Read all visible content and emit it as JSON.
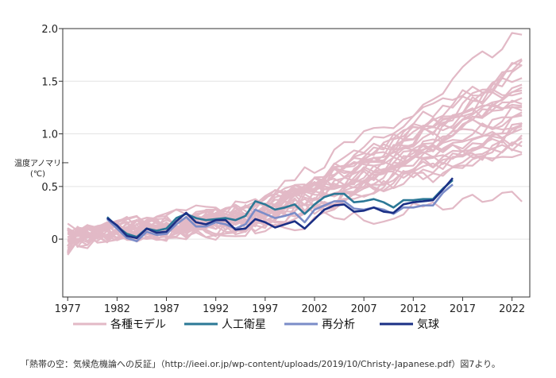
{
  "chart_data": {
    "type": "line",
    "ylabel_line1": "温度アノマリー",
    "ylabel_line2": "(℃)",
    "xlim": [
      1976.5,
      2023.8
    ],
    "ylim": [
      -0.55,
      2.0
    ],
    "x_ticks": [
      1977,
      1982,
      1987,
      1992,
      1997,
      2002,
      2007,
      2012,
      2017,
      2022
    ],
    "y_ticks": [
      0,
      0.5,
      1.0,
      1.5,
      2.0
    ],
    "y_tick_labels": [
      "0",
      "0.5",
      "1.0",
      "1.5",
      "2.0"
    ],
    "grid": true,
    "legend_position": "bottom",
    "models": {
      "name": "各種モデル",
      "color": "#e2b9c6",
      "count": 30,
      "start_year": 1977,
      "end_year": 2023,
      "note": "ensemble of ~30 model runs, starting near 0 in 1977 and spreading to about 0.4–2.0 by 2023"
    },
    "series": [
      {
        "name": "人工衛星",
        "color": "#2b7896",
        "x": [
          1981,
          1982,
          1983,
          1984,
          1985,
          1986,
          1987,
          1988,
          1989,
          1990,
          1991,
          1992,
          1993,
          1994,
          1995,
          1996,
          1997,
          1998,
          1999,
          2000,
          2001,
          2002,
          2003,
          2004,
          2005,
          2006,
          2007,
          2008,
          2009,
          2010,
          2011,
          2012,
          2013,
          2014,
          2015,
          2016
        ],
        "y": [
          0.21,
          0.12,
          0.05,
          0.02,
          0.1,
          0.08,
          0.1,
          0.2,
          0.24,
          0.2,
          0.18,
          0.19,
          0.2,
          0.18,
          0.22,
          0.36,
          0.33,
          0.28,
          0.3,
          0.33,
          0.24,
          0.33,
          0.4,
          0.43,
          0.43,
          0.35,
          0.36,
          0.38,
          0.35,
          0.3,
          0.37,
          0.37,
          0.38,
          0.38,
          0.48,
          0.56
        ]
      },
      {
        "name": "再分析",
        "color": "#7b8cc8",
        "x": [
          1981,
          1982,
          1983,
          1984,
          1985,
          1986,
          1987,
          1988,
          1989,
          1990,
          1991,
          1992,
          1993,
          1994,
          1995,
          1996,
          1997,
          1998,
          1999,
          2000,
          2001,
          2002,
          2003,
          2004,
          2005,
          2006,
          2007,
          2008,
          2009,
          2010,
          2011,
          2012,
          2013,
          2014,
          2015,
          2016
        ],
        "y": [
          0.19,
          0.1,
          0.01,
          -0.02,
          0.07,
          0.04,
          0.05,
          0.14,
          0.21,
          0.12,
          0.12,
          0.16,
          0.14,
          0.1,
          0.14,
          0.28,
          0.24,
          0.2,
          0.22,
          0.25,
          0.16,
          0.28,
          0.32,
          0.36,
          0.36,
          0.29,
          0.28,
          0.3,
          0.28,
          0.24,
          0.3,
          0.3,
          0.32,
          0.32,
          0.44,
          0.52
        ]
      },
      {
        "name": "気球",
        "color": "#1a2f85",
        "x": [
          1981,
          1982,
          1983,
          1984,
          1985,
          1986,
          1987,
          1988,
          1989,
          1990,
          1991,
          1992,
          1993,
          1994,
          1995,
          1996,
          1997,
          1998,
          1999,
          2000,
          2001,
          2002,
          2003,
          2004,
          2005,
          2006,
          2007,
          2008,
          2009,
          2010,
          2011,
          2012,
          2013,
          2014,
          2015,
          2016
        ],
        "y": [
          0.2,
          0.13,
          0.03,
          0.01,
          0.1,
          0.06,
          0.07,
          0.17,
          0.25,
          0.16,
          0.14,
          0.18,
          0.18,
          0.09,
          0.1,
          0.19,
          0.16,
          0.11,
          0.14,
          0.17,
          0.1,
          0.19,
          0.28,
          0.32,
          0.33,
          0.26,
          0.27,
          0.3,
          0.26,
          0.25,
          0.33,
          0.35,
          0.36,
          0.37,
          0.47,
          0.58
        ]
      }
    ]
  },
  "caption": "「熱帯の空：気候危機論への反証」（http://ieei.or.jp/wp-content/uploads/2019/10/Christy-Japanese.pdf）図7より。"
}
